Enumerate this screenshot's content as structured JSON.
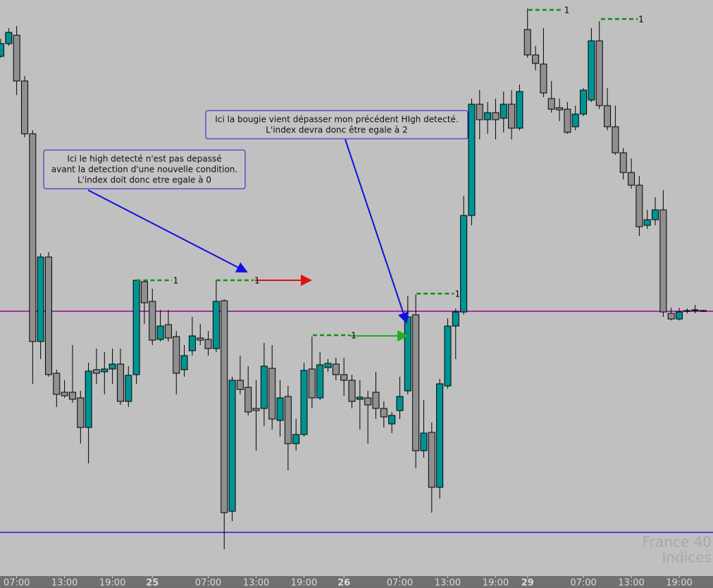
{
  "chart_data": {
    "type": "candlestick",
    "open": [
      740,
      758,
      770,
      705,
      630,
      335,
      455,
      290,
      263,
      263,
      255,
      213,
      295,
      292,
      296,
      303,
      250,
      288,
      420,
      392,
      338,
      359,
      342,
      295,
      322,
      340,
      338,
      325,
      393,
      94,
      280,
      270,
      240,
      240,
      297,
      223,
      257,
      190,
      203,
      296,
      255,
      298,
      303,
      288,
      280,
      253,
      255,
      263,
      240,
      218,
      237,
      265,
      373,
      180,
      206,
      128,
      272,
      357,
      377,
      514,
      672,
      650,
      660,
      652,
      672,
      638,
      778,
      742,
      729,
      680,
      667,
      665,
      640,
      658,
      678,
      762,
      670,
      640,
      603,
      575,
      557,
      500,
      508,
      522,
      375,
      367,
      379,
      380,
      379
    ],
    "high": [
      765,
      780,
      783,
      712,
      635,
      460,
      462,
      295,
      280,
      330,
      265,
      305,
      325,
      320,
      325,
      325,
      300,
      423,
      422,
      410,
      380,
      380,
      350,
      330,
      370,
      360,
      350,
      422,
      395,
      285,
      315,
      300,
      280,
      333,
      330,
      280,
      272,
      225,
      305,
      342,
      320,
      310,
      312,
      312,
      288,
      280,
      265,
      292,
      250,
      235,
      285,
      400,
      402,
      252,
      220,
      282,
      368,
      382,
      542,
      680,
      692,
      675,
      680,
      690,
      692,
      700,
      808,
      755,
      780,
      705,
      680,
      675,
      670,
      695,
      780,
      790,
      695,
      670,
      610,
      595,
      570,
      522,
      540,
      550,
      383,
      383,
      382,
      387,
      380
    ],
    "low": [
      738,
      755,
      685,
      625,
      275,
      310,
      285,
      242,
      255,
      248,
      190,
      162,
      275,
      260,
      275,
      245,
      242,
      275,
      360,
      330,
      335,
      335,
      260,
      285,
      315,
      330,
      315,
      320,
      40,
      80,
      260,
      230,
      180,
      215,
      210,
      200,
      152,
      180,
      200,
      240,
      252,
      292,
      280,
      258,
      240,
      210,
      190,
      225,
      213,
      205,
      225,
      260,
      155,
      170,
      92,
      112,
      268,
      310,
      373,
      500,
      622,
      630,
      622,
      632,
      622,
      635,
      738,
      720,
      682,
      660,
      648,
      630,
      635,
      655,
      675,
      665,
      635,
      600,
      565,
      552,
      485,
      495,
      500,
      370,
      365,
      365,
      375,
      375,
      377
    ],
    "close": [
      758,
      774,
      705,
      630,
      335,
      455,
      288,
      260,
      258,
      253,
      213,
      293,
      290,
      296,
      303,
      250,
      287,
      422,
      390,
      337,
      357,
      340,
      290,
      315,
      343,
      337,
      325,
      392,
      92,
      280,
      267,
      235,
      237,
      300,
      225,
      255,
      190,
      203,
      294,
      255,
      302,
      304,
      288,
      280,
      250,
      256,
      245,
      240,
      228,
      230,
      257,
      370,
      180,
      205,
      128,
      275,
      357,
      377,
      514,
      672,
      650,
      660,
      650,
      672,
      638,
      690,
      742,
      730,
      688,
      665,
      664,
      632,
      658,
      692,
      762,
      670,
      640,
      603,
      575,
      557,
      498,
      508,
      522,
      377,
      367,
      377,
      378,
      379,
      378
    ],
    "up_color": "#009393",
    "down_color": "#909090",
    "xlim": [
      0,
      88
    ],
    "ylim": [
      0,
      820
    ],
    "xticks": [
      {
        "value": 2,
        "label": "07:00"
      },
      {
        "value": 8,
        "label": "13:00"
      },
      {
        "value": 14,
        "label": "19:00"
      },
      {
        "value": 19,
        "label": "25"
      },
      {
        "value": 26,
        "label": "07:00"
      },
      {
        "value": 32,
        "label": "13:00"
      },
      {
        "value": 38,
        "label": "19:00"
      },
      {
        "value": 43,
        "label": "26"
      },
      {
        "value": 50,
        "label": "07:00"
      },
      {
        "value": 56,
        "label": "13:00"
      },
      {
        "value": 62,
        "label": "19:00"
      },
      {
        "value": 66,
        "label": "29"
      },
      {
        "value": 73,
        "label": "07:00"
      },
      {
        "value": 79,
        "label": "13:00"
      },
      {
        "value": 85,
        "label": "19:00"
      }
    ],
    "hlines": [
      {
        "value": 378,
        "color": "#a000a0"
      },
      {
        "value": 64,
        "color": "#2020d0"
      }
    ],
    "levels": [
      {
        "start": 17,
        "end": 21.5,
        "value": 422,
        "label": "1"
      },
      {
        "start": 27,
        "end": 31.7,
        "value": 422,
        "label": "1"
      },
      {
        "start": 39.1,
        "end": 43.8,
        "value": 344,
        "label": "1"
      },
      {
        "start": 52.1,
        "end": 56.8,
        "value": 403,
        "label": "1"
      },
      {
        "start": 66.1,
        "end": 70.5,
        "value": 806,
        "label": "1"
      },
      {
        "start": 75.2,
        "end": 79.8,
        "value": 793,
        "label": "1"
      }
    ],
    "annotations": [
      [
        "Ici le high detecté n'est pas depassé",
        "avant la detection d'une nouvelle condition.",
        "L'index doit donc etre egale à 0"
      ],
      [
        "Ici la bougie vient dépasser mon précédent HIgh detecté.",
        "L'index devra donc être egale à 2"
      ]
    ],
    "watermark": [
      "France 40",
      "Indices"
    ]
  }
}
